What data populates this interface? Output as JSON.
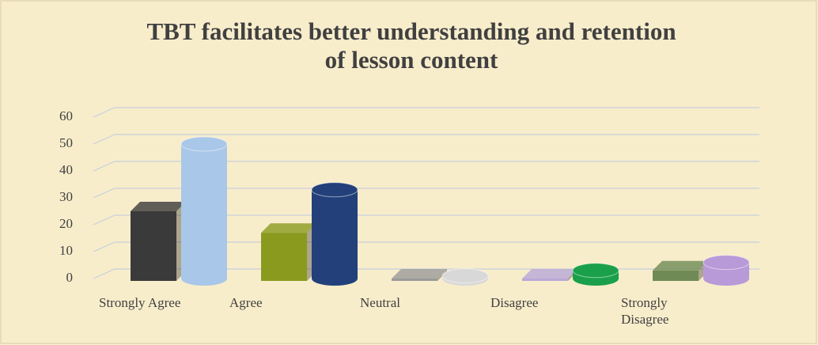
{
  "chart_data": {
    "type": "bar3d",
    "title": "TBT facilitates better understanding and retention of lesson content",
    "categories": [
      "Strongly Agree",
      "Agree",
      "Neutral",
      "Disagree",
      "Strongly Disagree"
    ],
    "series": [
      {
        "colors": [
          "#3a3a3a",
          "#8a9a1e",
          "#9a9a9a",
          "#b9a8d8",
          "#6f8a55"
        ],
        "values": [
          25,
          17,
          0,
          0,
          3
        ]
      },
      {
        "colors": [
          "#a9c7e8",
          "#23407a",
          "#d8d8d8",
          "#1aa04a",
          "#b89ad8"
        ],
        "values": [
          50,
          33,
          1,
          3,
          6
        ]
      }
    ],
    "ylim": [
      0,
      60
    ],
    "yticks": [
      0,
      10,
      20,
      30,
      40,
      50,
      60
    ],
    "grid": true
  }
}
